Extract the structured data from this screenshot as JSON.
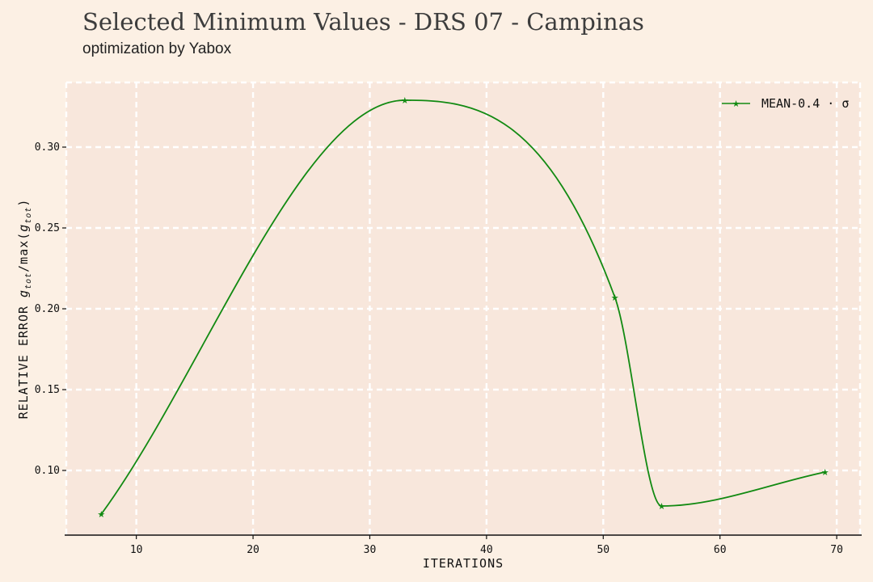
{
  "header": {
    "title": "Selected Minimum Values - DRS 07 - Campinas",
    "subtitle": "optimization by Yabox"
  },
  "colors": {
    "background": "#fcf0e4",
    "plot_area": "#f8e7dc",
    "grid": "#ffffff",
    "series": "#128a12"
  },
  "chart_data": {
    "type": "line",
    "title": "Selected Minimum Values - DRS 07 - Campinas",
    "subtitle": "optimization by Yabox",
    "xlabel": "ITERATIONS",
    "ylabel": "RELATIVE ERROR g_tot/max(g_tot)",
    "xlim": [
      4,
      72
    ],
    "ylim": [
      0.06,
      0.34
    ],
    "x_ticks": [
      10,
      20,
      30,
      40,
      50,
      60,
      70
    ],
    "y_ticks": [
      0.1,
      0.15,
      0.2,
      0.25,
      0.3
    ],
    "x_tick_labels": [
      "10",
      "20",
      "30",
      "40",
      "50",
      "60",
      "70"
    ],
    "y_tick_labels": [
      "0.10",
      "0.15",
      "0.20",
      "0.25",
      "0.30"
    ],
    "grid": true,
    "legend_position": "top-right",
    "series": [
      {
        "name": "MEAN-0.4 · σ",
        "marker": "star",
        "color": "#128a12",
        "x": [
          7,
          33,
          51,
          55,
          69
        ],
        "y": [
          0.073,
          0.329,
          0.207,
          0.078,
          0.099
        ]
      }
    ]
  }
}
